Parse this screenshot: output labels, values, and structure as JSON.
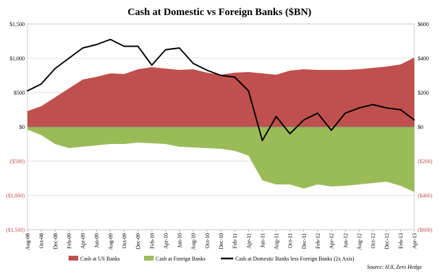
{
  "chart_data": {
    "type": "area",
    "title": "Cash at Domestic vs Foreign Banks ($BN)",
    "source": "Source: H.8, Zero Hedge",
    "x_labels": [
      "Aug-08",
      "Oct-08",
      "Dec-08",
      "Feb-09",
      "Apr-09",
      "Jun-09",
      "Aug-09",
      "Oct-09",
      "Dec-09",
      "Feb-10",
      "Apr-10",
      "Jun-10",
      "Aug-10",
      "Oct-10",
      "Dec-10",
      "Feb-11",
      "Apr-11",
      "Jun-11",
      "Aug-11",
      "Oct-11",
      "Dec-11",
      "Feb-12",
      "Apr-12",
      "Jun-12",
      "Aug-12",
      "Oct-12",
      "Dec-12",
      "Feb-13",
      "Apr-13"
    ],
    "y_left": {
      "min": -1500,
      "max": 1500,
      "ticks": [
        1500,
        1000,
        500,
        0,
        -500,
        -1000,
        -1500
      ],
      "tick_labels": [
        "$1,500",
        "$1,000",
        "$500",
        "$0",
        "($500)",
        "($1,000)",
        "($1,500)"
      ]
    },
    "y_right": {
      "min": -600,
      "max": 600,
      "ticks": [
        600,
        400,
        200,
        0,
        -200,
        -400,
        -600
      ],
      "tick_labels": [
        "$600",
        "$400",
        "$200",
        "$0",
        "($200)",
        "($400)",
        "($600)"
      ]
    },
    "grid": true,
    "legend_position": "bottom",
    "series": [
      {
        "name": "Cash at US Banks",
        "axis": "left",
        "kind": "area",
        "color": "#c0504d",
        "values": [
          230,
          300,
          430,
          560,
          690,
          730,
          780,
          770,
          840,
          870,
          850,
          830,
          840,
          790,
          760,
          790,
          800,
          780,
          760,
          820,
          840,
          830,
          830,
          830,
          840,
          860,
          880,
          910,
          1010
        ]
      },
      {
        "name": "Cash at Foreign Banks",
        "axis": "left",
        "kind": "area",
        "color": "#9bbb59",
        "values": [
          -40,
          -120,
          -250,
          -310,
          -290,
          -270,
          -250,
          -250,
          -230,
          -240,
          -250,
          -290,
          -300,
          -310,
          -320,
          -350,
          -420,
          -780,
          -840,
          -840,
          -900,
          -840,
          -870,
          -860,
          -840,
          -820,
          -800,
          -860,
          -950
        ]
      },
      {
        "name": "Cash at Domestic Banks less Foreign Banks (2x Axis)",
        "axis": "right",
        "kind": "line",
        "color": "#000000",
        "values": [
          210,
          250,
          340,
          400,
          460,
          480,
          510,
          470,
          470,
          360,
          450,
          460,
          370,
          330,
          300,
          290,
          210,
          -80,
          60,
          -40,
          40,
          80,
          -20,
          80,
          110,
          130,
          110,
          100,
          40
        ]
      }
    ]
  }
}
